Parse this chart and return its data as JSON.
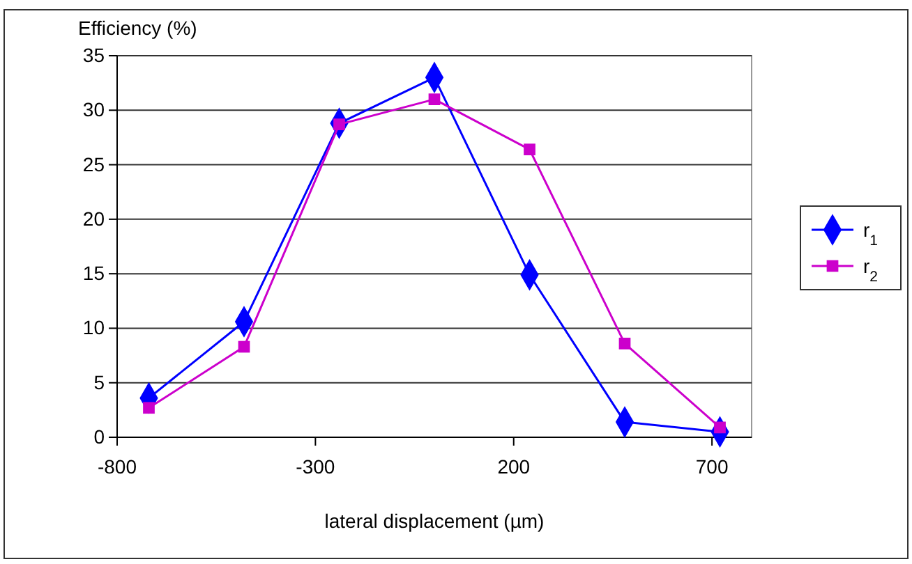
{
  "chart_data": {
    "type": "line",
    "ylabel": "Efficiency (%)",
    "xlabel": "lateral displacement (µm)",
    "x": [
      -720,
      -480,
      -240,
      0,
      240,
      480,
      720
    ],
    "series": [
      {
        "name": "r$_{1}$",
        "color": "#0000ff",
        "marker": "diamond",
        "values": [
          3.6,
          10.6,
          28.8,
          33.0,
          14.9,
          1.4,
          0.5
        ]
      },
      {
        "name": "r$_{2}$",
        "color": "#cc00cc",
        "marker": "square",
        "values": [
          2.7,
          8.3,
          28.7,
          31.0,
          26.4,
          8.6,
          0.9
        ]
      }
    ],
    "xlim": [
      -800,
      800
    ],
    "xticks": [
      -800,
      -300,
      200,
      700
    ],
    "ylim": [
      0,
      35
    ],
    "yticks": [
      0,
      5,
      10,
      15,
      20,
      25,
      30,
      35
    ],
    "grid": "y",
    "legend": "right"
  }
}
